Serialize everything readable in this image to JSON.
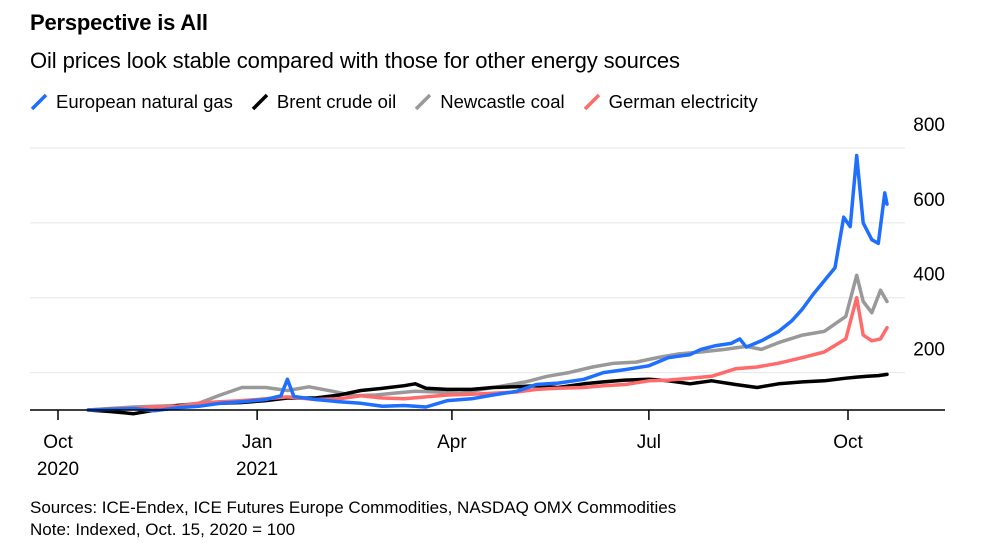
{
  "title": "Perspective is All",
  "subtitle": "Oil prices look stable compared with those for other energy sources",
  "footer": {
    "sources": "Sources: ICE-Endex, ICE Futures Europe Commodities, NASDAQ OMX Commodities",
    "note": "Note: Indexed, Oct. 15, 2020 = 100"
  },
  "chart_data": {
    "type": "line",
    "title": "Perspective is All",
    "subtitle": "Oil prices look stable compared with those for other energy sources",
    "xlabel": "",
    "ylabel": "",
    "xlim": [
      "2020-10-01",
      "2021-10-31"
    ],
    "ylim": [
      100,
      800
    ],
    "y_axis_side": "right",
    "y_ticks": [
      200,
      400,
      600,
      800
    ],
    "x_ticks": [
      {
        "date": "2020-10-01",
        "label": [
          "Oct",
          "2020"
        ]
      },
      {
        "date": "2021-01-01",
        "label": [
          "Jan",
          "2021"
        ]
      },
      {
        "date": "2021-04-01",
        "label": [
          "Apr"
        ]
      },
      {
        "date": "2021-07-01",
        "label": [
          "Jul"
        ]
      },
      {
        "date": "2021-10-01",
        "label": [
          "Oct"
        ]
      }
    ],
    "grid": "horizontal",
    "legend_position": "top",
    "series": [
      {
        "name": "European natural gas",
        "color": "#1f6fff",
        "points": [
          [
            "2020-10-15",
            100
          ],
          [
            "2020-10-25",
            102
          ],
          [
            "2020-11-05",
            104
          ],
          [
            "2020-11-15",
            98
          ],
          [
            "2020-11-25",
            106
          ],
          [
            "2020-12-05",
            110
          ],
          [
            "2020-12-15",
            118
          ],
          [
            "2020-12-25",
            122
          ],
          [
            "2021-01-05",
            128
          ],
          [
            "2021-01-12",
            138
          ],
          [
            "2021-01-15",
            182
          ],
          [
            "2021-01-18",
            136
          ],
          [
            "2021-01-28",
            128
          ],
          [
            "2021-02-08",
            122
          ],
          [
            "2021-02-18",
            118
          ],
          [
            "2021-02-28",
            110
          ],
          [
            "2021-03-10",
            112
          ],
          [
            "2021-03-20",
            108
          ],
          [
            "2021-03-30",
            125
          ],
          [
            "2021-04-10",
            130
          ],
          [
            "2021-04-20",
            140
          ],
          [
            "2021-05-01",
            150
          ],
          [
            "2021-05-10",
            168
          ],
          [
            "2021-05-20",
            172
          ],
          [
            "2021-06-01",
            182
          ],
          [
            "2021-06-10",
            200
          ],
          [
            "2021-06-20",
            208
          ],
          [
            "2021-07-01",
            218
          ],
          [
            "2021-07-10",
            240
          ],
          [
            "2021-07-20",
            248
          ],
          [
            "2021-07-25",
            262
          ],
          [
            "2021-08-01",
            272
          ],
          [
            "2021-08-08",
            278
          ],
          [
            "2021-08-12",
            290
          ],
          [
            "2021-08-15",
            268
          ],
          [
            "2021-08-22",
            285
          ],
          [
            "2021-08-30",
            310
          ],
          [
            "2021-09-05",
            338
          ],
          [
            "2021-09-10",
            370
          ],
          [
            "2021-09-15",
            410
          ],
          [
            "2021-09-20",
            445
          ],
          [
            "2021-09-25",
            480
          ],
          [
            "2021-09-29",
            615
          ],
          [
            "2021-10-02",
            590
          ],
          [
            "2021-10-05",
            780
          ],
          [
            "2021-10-08",
            600
          ],
          [
            "2021-10-12",
            555
          ],
          [
            "2021-10-15",
            545
          ],
          [
            "2021-10-18",
            680
          ],
          [
            "2021-10-19",
            650
          ]
        ]
      },
      {
        "name": "Brent crude oil",
        "color": "#000000",
        "points": [
          [
            "2020-10-15",
            100
          ],
          [
            "2020-10-25",
            96
          ],
          [
            "2020-11-05",
            90
          ],
          [
            "2020-11-15",
            100
          ],
          [
            "2020-11-25",
            112
          ],
          [
            "2020-12-05",
            115
          ],
          [
            "2020-12-15",
            118
          ],
          [
            "2020-12-25",
            120
          ],
          [
            "2021-01-05",
            125
          ],
          [
            "2021-01-15",
            132
          ],
          [
            "2021-01-28",
            132
          ],
          [
            "2021-02-08",
            140
          ],
          [
            "2021-02-18",
            152
          ],
          [
            "2021-02-28",
            158
          ],
          [
            "2021-03-10",
            165
          ],
          [
            "2021-03-15",
            170
          ],
          [
            "2021-03-20",
            158
          ],
          [
            "2021-03-30",
            155
          ],
          [
            "2021-04-10",
            155
          ],
          [
            "2021-04-20",
            160
          ],
          [
            "2021-05-01",
            162
          ],
          [
            "2021-05-10",
            165
          ],
          [
            "2021-05-20",
            160
          ],
          [
            "2021-06-01",
            170
          ],
          [
            "2021-06-10",
            175
          ],
          [
            "2021-06-20",
            180
          ],
          [
            "2021-07-01",
            182
          ],
          [
            "2021-07-10",
            178
          ],
          [
            "2021-07-20",
            170
          ],
          [
            "2021-07-30",
            178
          ],
          [
            "2021-08-10",
            168
          ],
          [
            "2021-08-20",
            160
          ],
          [
            "2021-08-30",
            170
          ],
          [
            "2021-09-10",
            175
          ],
          [
            "2021-09-20",
            178
          ],
          [
            "2021-09-30",
            185
          ],
          [
            "2021-10-05",
            188
          ],
          [
            "2021-10-10",
            190
          ],
          [
            "2021-10-15",
            192
          ],
          [
            "2021-10-19",
            195
          ]
        ]
      },
      {
        "name": "Newcastle coal",
        "color": "#999999",
        "points": [
          [
            "2020-10-15",
            100
          ],
          [
            "2020-10-25",
            104
          ],
          [
            "2020-11-05",
            108
          ],
          [
            "2020-11-15",
            110
          ],
          [
            "2020-11-25",
            112
          ],
          [
            "2020-12-05",
            118
          ],
          [
            "2020-12-15",
            140
          ],
          [
            "2020-12-25",
            160
          ],
          [
            "2021-01-05",
            160
          ],
          [
            "2021-01-15",
            152
          ],
          [
            "2021-01-25",
            162
          ],
          [
            "2021-02-05",
            150
          ],
          [
            "2021-02-15",
            138
          ],
          [
            "2021-02-25",
            140
          ],
          [
            "2021-03-05",
            145
          ],
          [
            "2021-03-15",
            150
          ],
          [
            "2021-03-25",
            148
          ],
          [
            "2021-04-05",
            145
          ],
          [
            "2021-04-15",
            155
          ],
          [
            "2021-04-25",
            165
          ],
          [
            "2021-05-05",
            175
          ],
          [
            "2021-05-15",
            190
          ],
          [
            "2021-05-25",
            200
          ],
          [
            "2021-06-05",
            215
          ],
          [
            "2021-06-15",
            225
          ],
          [
            "2021-06-25",
            228
          ],
          [
            "2021-07-05",
            240
          ],
          [
            "2021-07-15",
            250
          ],
          [
            "2021-07-25",
            255
          ],
          [
            "2021-08-05",
            262
          ],
          [
            "2021-08-15",
            270
          ],
          [
            "2021-08-22",
            262
          ],
          [
            "2021-08-30",
            280
          ],
          [
            "2021-09-10",
            300
          ],
          [
            "2021-09-20",
            310
          ],
          [
            "2021-09-30",
            350
          ],
          [
            "2021-10-05",
            460
          ],
          [
            "2021-10-08",
            390
          ],
          [
            "2021-10-12",
            360
          ],
          [
            "2021-10-16",
            420
          ],
          [
            "2021-10-19",
            390
          ]
        ]
      },
      {
        "name": "German electricity",
        "color": "#ff6b6b",
        "points": [
          [
            "2020-10-15",
            100
          ],
          [
            "2020-10-25",
            103
          ],
          [
            "2020-11-05",
            105
          ],
          [
            "2020-11-15",
            108
          ],
          [
            "2020-11-25",
            110
          ],
          [
            "2020-12-05",
            118
          ],
          [
            "2020-12-15",
            122
          ],
          [
            "2020-12-25",
            125
          ],
          [
            "2021-01-05",
            130
          ],
          [
            "2021-01-15",
            135
          ],
          [
            "2021-01-28",
            128
          ],
          [
            "2021-02-08",
            130
          ],
          [
            "2021-02-18",
            138
          ],
          [
            "2021-02-28",
            132
          ],
          [
            "2021-03-10",
            130
          ],
          [
            "2021-03-20",
            135
          ],
          [
            "2021-03-30",
            140
          ],
          [
            "2021-04-10",
            142
          ],
          [
            "2021-04-20",
            145
          ],
          [
            "2021-05-01",
            148
          ],
          [
            "2021-05-10",
            155
          ],
          [
            "2021-05-20",
            158
          ],
          [
            "2021-06-01",
            160
          ],
          [
            "2021-06-10",
            165
          ],
          [
            "2021-06-20",
            168
          ],
          [
            "2021-07-01",
            178
          ],
          [
            "2021-07-10",
            180
          ],
          [
            "2021-07-20",
            185
          ],
          [
            "2021-07-30",
            190
          ],
          [
            "2021-08-10",
            210
          ],
          [
            "2021-08-20",
            215
          ],
          [
            "2021-08-30",
            225
          ],
          [
            "2021-09-10",
            240
          ],
          [
            "2021-09-20",
            255
          ],
          [
            "2021-09-30",
            290
          ],
          [
            "2021-10-05",
            400
          ],
          [
            "2021-10-08",
            300
          ],
          [
            "2021-10-12",
            285
          ],
          [
            "2021-10-16",
            290
          ],
          [
            "2021-10-19",
            320
          ]
        ]
      }
    ]
  }
}
